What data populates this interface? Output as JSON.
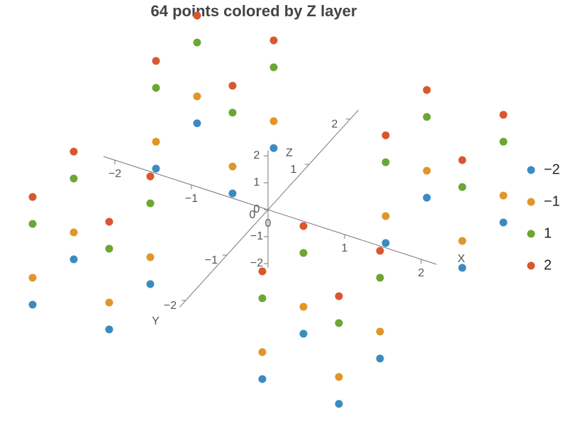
{
  "chart_data": {
    "type": "scatter3d",
    "title": "64 points colored by Z layer",
    "x_label": "X",
    "y_label": "Y",
    "z_label": "Z",
    "xlim": [
      -2,
      2
    ],
    "ylim": [
      -2,
      2
    ],
    "zlim": [
      -2,
      2
    ],
    "xticks": [
      {
        "value": -2,
        "label": "−2"
      },
      {
        "value": -1,
        "label": "−1"
      },
      0,
      1,
      2
    ],
    "yticks": [
      {
        "value": -2,
        "label": "−2"
      },
      {
        "value": -1,
        "label": "−1"
      },
      0,
      1,
      2
    ],
    "zticks": [
      {
        "value": -2,
        "label": "−2"
      },
      {
        "value": -1,
        "label": "−1"
      },
      0,
      1,
      2
    ],
    "legend": "right",
    "series": [
      {
        "name": "−2",
        "color": "#3b8bc0",
        "x": [
          -2,
          -2,
          -2,
          -2,
          -1,
          -1,
          -1,
          -1,
          1,
          1,
          1,
          1,
          2,
          2,
          2,
          2
        ],
        "y": [
          -2,
          -1,
          1,
          2,
          -2,
          -1,
          1,
          2,
          -2,
          -1,
          1,
          2,
          -2,
          -1,
          1,
          2
        ],
        "z": [
          -2,
          -2,
          -2,
          -2,
          -2,
          -2,
          -2,
          -2,
          -2,
          -2,
          -2,
          -2,
          -2,
          -2,
          -2,
          -2
        ]
      },
      {
        "name": "−1",
        "color": "#e0962a",
        "x": [
          -2,
          -2,
          -2,
          -2,
          -1,
          -1,
          -1,
          -1,
          1,
          1,
          1,
          1,
          2,
          2,
          2,
          2
        ],
        "y": [
          -2,
          -1,
          1,
          2,
          -2,
          -1,
          1,
          2,
          -2,
          -1,
          1,
          2,
          -2,
          -1,
          1,
          2
        ],
        "z": [
          -1,
          -1,
          -1,
          -1,
          -1,
          -1,
          -1,
          -1,
          -1,
          -1,
          -1,
          -1,
          -1,
          -1,
          -1,
          -1
        ]
      },
      {
        "name": "1",
        "color": "#6aa733",
        "x": [
          -2,
          -2,
          -2,
          -2,
          -1,
          -1,
          -1,
          -1,
          1,
          1,
          1,
          1,
          2,
          2,
          2,
          2
        ],
        "y": [
          -2,
          -1,
          1,
          2,
          -2,
          -1,
          1,
          2,
          -2,
          -1,
          1,
          2,
          -2,
          -1,
          1,
          2
        ],
        "z": [
          1,
          1,
          1,
          1,
          1,
          1,
          1,
          1,
          1,
          1,
          1,
          1,
          1,
          1,
          1,
          1
        ]
      },
      {
        "name": "2",
        "color": "#d9572f",
        "x": [
          -2,
          -2,
          -2,
          -2,
          -1,
          -1,
          -1,
          -1,
          1,
          1,
          1,
          1,
          2,
          2,
          2,
          2
        ],
        "y": [
          -2,
          -1,
          1,
          2,
          -2,
          -1,
          1,
          2,
          -2,
          -1,
          1,
          2,
          -2,
          -1,
          1,
          2
        ],
        "z": [
          2,
          2,
          2,
          2,
          2,
          2,
          2,
          2,
          2,
          2,
          2,
          2,
          2,
          2,
          2,
          2
        ]
      }
    ]
  }
}
